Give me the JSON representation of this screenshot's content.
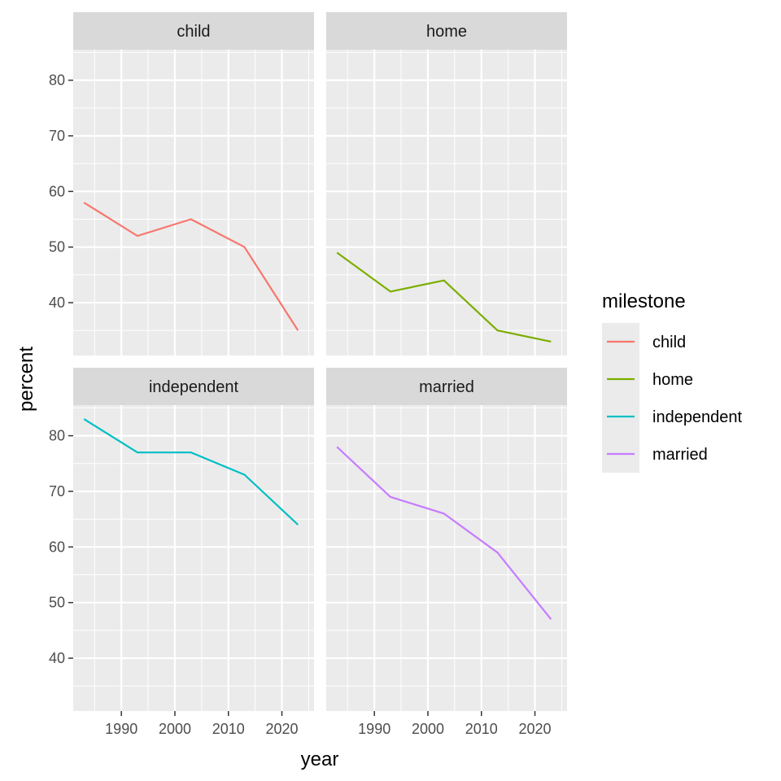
{
  "chart_data": {
    "type": "line",
    "xlabel": "year",
    "ylabel": "percent",
    "xlim": [
      1981,
      2026
    ],
    "ylim": [
      30.5,
      85.5
    ],
    "x_ticks": [
      1990,
      2000,
      2010,
      2020
    ],
    "y_ticks": [
      40,
      50,
      60,
      70,
      80
    ],
    "grid": true,
    "legend": {
      "title": "milestone",
      "position": "right",
      "entries": [
        "child",
        "home",
        "independent",
        "married"
      ]
    },
    "x": [
      1983,
      1993,
      2003,
      2013,
      2023
    ],
    "panels": [
      {
        "facet": "child",
        "series": [
          {
            "name": "child",
            "color": "#F8766D",
            "values": [
              58,
              52,
              55,
              50,
              35
            ]
          }
        ]
      },
      {
        "facet": "home",
        "series": [
          {
            "name": "home",
            "color": "#7CAE00",
            "values": [
              49,
              42,
              44,
              35,
              33
            ]
          }
        ]
      },
      {
        "facet": "independent",
        "series": [
          {
            "name": "independent",
            "color": "#00BFC4",
            "values": [
              83,
              77,
              77,
              73,
              64
            ]
          }
        ]
      },
      {
        "facet": "married",
        "series": [
          {
            "name": "married",
            "color": "#C77CFF",
            "values": [
              78,
              69,
              66,
              59,
              47
            ]
          }
        ]
      }
    ]
  }
}
